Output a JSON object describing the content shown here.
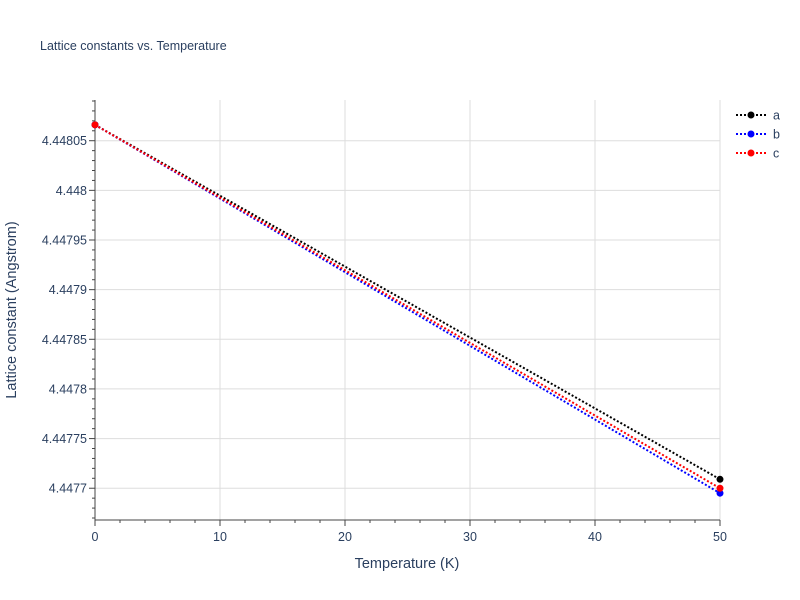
{
  "chart_data": {
    "type": "line",
    "title": "Lattice constants vs. Temperature",
    "xlabel": "Temperature (K)",
    "ylabel": "Lattice constant (Angstrom)",
    "xlim": [
      0,
      50
    ],
    "ylim": [
      4.447668,
      4.448091
    ],
    "x_ticks": [
      0,
      10,
      20,
      30,
      40,
      50
    ],
    "x_tick_labels": [
      "0",
      "10",
      "20",
      "30",
      "40",
      "50"
    ],
    "y_ticks": [
      4.4477,
      4.44775,
      4.4478,
      4.44785,
      4.4479,
      4.44795,
      4.448,
      4.44805
    ],
    "y_tick_labels": [
      "4.4477",
      "4.44775",
      "4.4478",
      "4.44785",
      "4.4479",
      "4.44795",
      "4.448",
      "4.44805"
    ],
    "grid": true,
    "legend_position": "top-right",
    "x": [
      0,
      50
    ],
    "series": [
      {
        "name": "a",
        "values": [
          4.448066,
          4.447709
        ],
        "color": "#000000",
        "line_style": "dotted",
        "marker": "circle"
      },
      {
        "name": "b",
        "values": [
          4.448066,
          4.447695
        ],
        "color": "#0000ff",
        "line_style": "dotted",
        "marker": "circle"
      },
      {
        "name": "c",
        "values": [
          4.448066,
          4.4477
        ],
        "color": "#ff0000",
        "line_style": "dotted",
        "marker": "circle"
      }
    ]
  }
}
